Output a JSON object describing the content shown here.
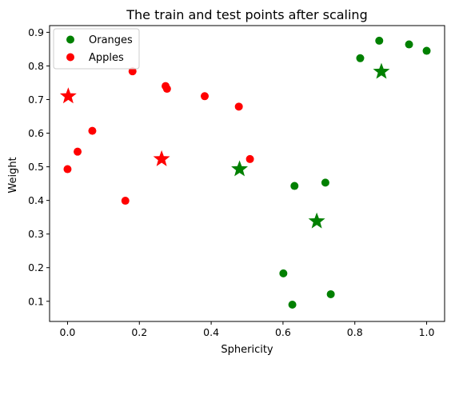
{
  "chart_data": {
    "type": "scatter",
    "title": "The train and test points after scaling",
    "xlabel": "Sphericity",
    "ylabel": "Weight",
    "xlim": [
      -0.05,
      1.05
    ],
    "ylim": [
      0.04,
      0.92
    ],
    "xticks": [
      0.0,
      0.2,
      0.4,
      0.6,
      0.8,
      1.0
    ],
    "xtick_labels": [
      "0.0",
      "0.2",
      "0.4",
      "0.6",
      "0.8",
      "1.0"
    ],
    "yticks": [
      0.1,
      0.2,
      0.3,
      0.4,
      0.5,
      0.6,
      0.7,
      0.8,
      0.9
    ],
    "ytick_labels": [
      "0.1",
      "0.2",
      "0.3",
      "0.4",
      "0.5",
      "0.6",
      "0.7",
      "0.8",
      "0.9"
    ],
    "grid": false,
    "legend_position": "top-left",
    "legend": [
      {
        "label": "Oranges",
        "color": "#008000"
      },
      {
        "label": "Apples",
        "color": "#ff0000"
      }
    ],
    "series": [
      {
        "name": "Oranges",
        "color": "#008000",
        "marker": "circle",
        "points": [
          {
            "x": 0.868,
            "y": 0.875
          },
          {
            "x": 0.951,
            "y": 0.864
          },
          {
            "x": 1.0,
            "y": 0.845
          },
          {
            "x": 0.815,
            "y": 0.823
          },
          {
            "x": 0.632,
            "y": 0.443
          },
          {
            "x": 0.718,
            "y": 0.453
          },
          {
            "x": 0.601,
            "y": 0.183
          },
          {
            "x": 0.733,
            "y": 0.121
          },
          {
            "x": 0.626,
            "y": 0.09
          }
        ]
      },
      {
        "name": "Apples",
        "color": "#ff0000",
        "marker": "circle",
        "points": [
          {
            "x": 0.181,
            "y": 0.784
          },
          {
            "x": 0.273,
            "y": 0.74
          },
          {
            "x": 0.277,
            "y": 0.732
          },
          {
            "x": 0.382,
            "y": 0.71
          },
          {
            "x": 0.477,
            "y": 0.679
          },
          {
            "x": 0.069,
            "y": 0.607
          },
          {
            "x": 0.028,
            "y": 0.545
          },
          {
            "x": 0.508,
            "y": 0.523
          },
          {
            "x": 0.0,
            "y": 0.493
          },
          {
            "x": 0.161,
            "y": 0.399
          }
        ]
      },
      {
        "color": "#008000",
        "marker": "star",
        "points": [
          {
            "x": 0.874,
            "y": 0.783
          },
          {
            "x": 0.479,
            "y": 0.493
          },
          {
            "x": 0.694,
            "y": 0.338
          }
        ]
      },
      {
        "color": "#ff0000",
        "marker": "star",
        "points": [
          {
            "x": 0.002,
            "y": 0.71
          },
          {
            "x": 0.262,
            "y": 0.523
          }
        ]
      }
    ]
  }
}
